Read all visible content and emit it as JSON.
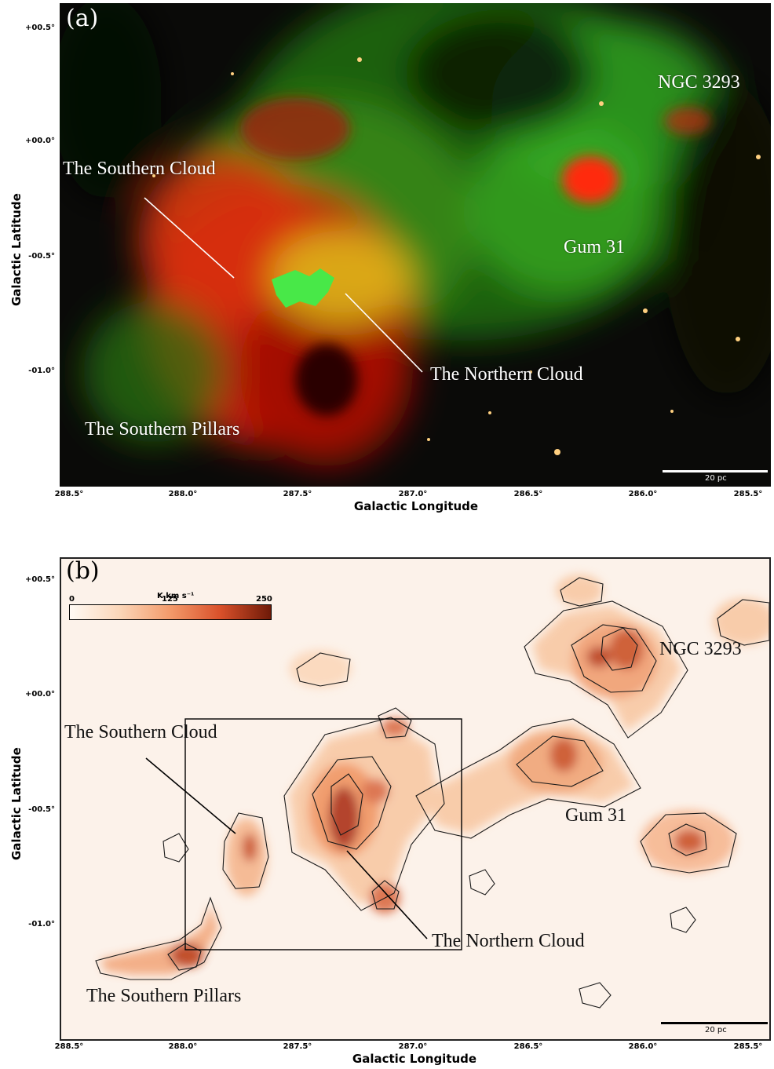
{
  "panel_a": {
    "label": "(a)",
    "regions": {
      "ngc3293": "NGC 3293",
      "southern_cloud": "The Southern Cloud",
      "gum31": "Gum 31",
      "northern_cloud": "The Northern Cloud",
      "southern_pillars": "The Southern Pillars"
    },
    "scalebar": "20 pc",
    "colors": {
      "red": "#d8200c",
      "green": "#3cc828",
      "yellow": "#e8e020"
    }
  },
  "panel_b": {
    "label": "(b)",
    "colorbar": {
      "unit": "K km s⁻¹",
      "min": "0",
      "mid": "125",
      "max": "250"
    },
    "regions": {
      "ngc3293": "NGC 3293",
      "southern_cloud": "The Southern Cloud",
      "gum31": "Gum 31",
      "northern_cloud": "The Northern Cloud",
      "southern_pillars": "The Southern Pillars"
    },
    "scalebar": "20 pc",
    "colors": {
      "low": "#fbd6b8",
      "mid": "#f08a58",
      "high": "#b8320e",
      "contour": "#1a1a1a"
    }
  },
  "axes": {
    "xlabel": "Galactic Longitude",
    "ylabel": "Galactic Latitude",
    "x_ticks": [
      "288.5°",
      "288.0°",
      "287.5°",
      "287.0°",
      "286.5°",
      "286.0°",
      "285.5°"
    ],
    "y_ticks": [
      "+00.5°",
      "+00.0°",
      "-00.5°",
      "-01.0°"
    ]
  }
}
